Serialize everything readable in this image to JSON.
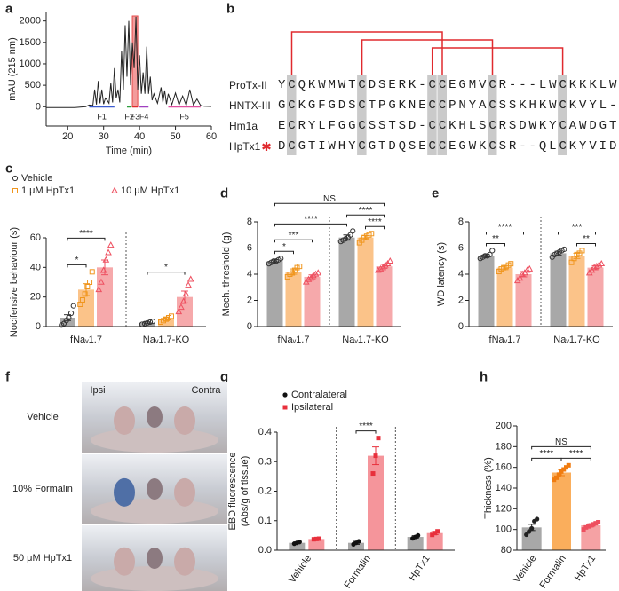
{
  "chart_data": [
    {
      "type": "line",
      "panel": "a",
      "ylabel": "mAU (215 nm)",
      "xlabel": "Time (min)",
      "color": "#222222",
      "xlim": [
        14,
        60
      ],
      "xticks": [
        20,
        30,
        40,
        50,
        60
      ],
      "ylim": [
        -450,
        2200
      ],
      "yticks": [
        0,
        500,
        1000,
        1500,
        2000
      ],
      "x": [
        14,
        22,
        25,
        26,
        27,
        27.5,
        28,
        28.5,
        29,
        29.5,
        30,
        30.5,
        31,
        31.5,
        32,
        32.5,
        33,
        33.5,
        34,
        34.5,
        35,
        35.5,
        36,
        36.5,
        37,
        37.5,
        38,
        38.5,
        39,
        39.5,
        40,
        40.5,
        41,
        41.5,
        42,
        42.5,
        43,
        43.5,
        44,
        45,
        46,
        46.5,
        47,
        47.5,
        48,
        49,
        50,
        51,
        52,
        53,
        54,
        55,
        56,
        57,
        58,
        60
      ],
      "values": [
        -20,
        -20,
        0,
        40,
        30,
        400,
        50,
        600,
        80,
        400,
        60,
        200,
        150,
        80,
        550,
        100,
        900,
        200,
        400,
        100,
        1300,
        400,
        1900,
        700,
        2000,
        500,
        1500,
        900,
        2100,
        400,
        1200,
        300,
        800,
        300,
        1400,
        300,
        700,
        150,
        300,
        80,
        450,
        100,
        380,
        60,
        300,
        50,
        320,
        40,
        250,
        30,
        400,
        40,
        180,
        30,
        10,
        5
      ],
      "fractions": [
        {
          "name": "F1",
          "color": "#3b5bd0",
          "range": [
            26,
            33
          ]
        },
        {
          "name": "F2",
          "color": "#2e9e3e",
          "range": [
            36.5,
            37.8
          ]
        },
        {
          "name": "F3",
          "color": "#e02c2c",
          "range": [
            38,
            39.5
          ],
          "highlight": true
        },
        {
          "name": "F4",
          "color": "#a040c0",
          "range": [
            40,
            42.5
          ]
        },
        {
          "name": "F5",
          "color": "#e04fa0",
          "range": [
            48,
            57
          ]
        }
      ]
    },
    {
      "type": "bar",
      "panel": "c",
      "ylabel": "Nocifensive behaviour (s)",
      "categories": [
        "fNaᵥ1.7",
        "Naᵥ1.7-KO"
      ],
      "ylim": [
        0,
        60
      ],
      "yticks": [
        0,
        20,
        40,
        60
      ],
      "group_separators": true,
      "series": [
        {
          "name": "Vehicle",
          "color": "#9e9e9e",
          "marker_color": "#333333",
          "marker": "circle-open",
          "values": [
            6,
            2.5
          ],
          "errors": [
            2,
            0.5
          ],
          "points": [
            [
              1,
              2,
              4,
              6,
              9,
              14
            ],
            [
              1.5,
              2,
              2.5,
              3,
              3.5
            ]
          ]
        },
        {
          "name": "1 μM HpTx1",
          "color": "#fbbd7c",
          "marker_color": "#f0961e",
          "marker": "square-open",
          "values": [
            25,
            5
          ],
          "errors": [
            4,
            1
          ],
          "points": [
            [
              15,
              18,
              22,
              27,
              30,
              37
            ],
            [
              3,
              4,
              5,
              6,
              7
            ]
          ]
        },
        {
          "name": "10 μM HpTx1",
          "color": "#f5a0a2",
          "marker_color": "#ee5060",
          "marker": "triangle-open",
          "values": [
            40,
            20
          ],
          "errors": [
            5,
            4
          ],
          "points": [
            [
              25,
              30,
              38,
              45,
              50,
              55
            ],
            [
              10,
              13,
              17,
              22,
              28,
              32
            ]
          ]
        }
      ],
      "significance": [
        {
          "text": "*",
          "from": [
            0,
            0
          ],
          "to": [
            0,
            1
          ]
        },
        {
          "text": "****",
          "from": [
            0,
            0
          ],
          "to": [
            0,
            2
          ]
        },
        {
          "text": "*",
          "from": [
            1,
            0
          ],
          "to": [
            1,
            2
          ]
        }
      ]
    },
    {
      "type": "bar",
      "panel": "d",
      "ylabel": "Mech. threshold (g)",
      "categories": [
        "fNaᵥ1.7",
        "Naᵥ1.7-KO"
      ],
      "ylim": [
        0,
        8
      ],
      "yticks": [
        0,
        2,
        4,
        6,
        8
      ],
      "group_separators": true,
      "series": [
        {
          "color": "#9e9e9e",
          "marker_color": "#333333",
          "marker": "circle-open",
          "values": [
            5.0,
            6.8
          ],
          "errors": [
            0.1,
            0.2
          ],
          "points": [
            [
              4.8,
              4.9,
              5.0,
              5.0,
              5.1,
              5.2
            ],
            [
              6.5,
              6.6,
              6.7,
              6.8,
              7.0,
              7.3
            ]
          ]
        },
        {
          "color": "#fbbd7c",
          "marker_color": "#f0961e",
          "marker": "square-open",
          "values": [
            4.2,
            6.8
          ],
          "errors": [
            0.2,
            0.15
          ],
          "points": [
            [
              3.8,
              4.0,
              4.1,
              4.3,
              4.5,
              4.6
            ],
            [
              6.4,
              6.6,
              6.8,
              6.9,
              7.0,
              7.1
            ]
          ]
        },
        {
          "color": "#f5a0a2",
          "marker_color": "#ee5060",
          "marker": "triangle-open",
          "values": [
            3.8,
            4.6
          ],
          "errors": [
            0.15,
            0.15
          ],
          "points": [
            [
              3.4,
              3.6,
              3.7,
              3.9,
              4.0,
              4.1
            ],
            [
              4.3,
              4.4,
              4.5,
              4.7,
              4.8,
              5.0
            ]
          ]
        }
      ],
      "significance": [
        {
          "text": "*",
          "from": [
            0,
            0
          ],
          "to": [
            0,
            1
          ]
        },
        {
          "text": "***",
          "from": [
            0,
            0
          ],
          "to": [
            0,
            2
          ]
        },
        {
          "text": "****",
          "from": [
            1,
            1
          ],
          "to": [
            1,
            2
          ]
        },
        {
          "text": "****",
          "from": [
            0,
            0
          ],
          "to": [
            1,
            0
          ]
        },
        {
          "text": "****",
          "from": [
            1,
            0
          ],
          "to": [
            1,
            2
          ]
        },
        {
          "text": "NS",
          "from": [
            0,
            0
          ],
          "to": [
            1,
            2
          ]
        }
      ]
    },
    {
      "type": "bar",
      "panel": "e",
      "ylabel": "WD latency (s)",
      "categories": [
        "fNaᵥ1.7",
        "Naᵥ1.7-KO"
      ],
      "ylim": [
        0,
        8
      ],
      "yticks": [
        0,
        2,
        4,
        6,
        8
      ],
      "group_separators": true,
      "series": [
        {
          "color": "#9e9e9e",
          "marker_color": "#333333",
          "marker": "circle-open",
          "values": [
            5.4,
            5.6
          ],
          "errors": [
            0.1,
            0.15
          ],
          "points": [
            [
              5.2,
              5.3,
              5.4,
              5.4,
              5.5,
              5.8
            ],
            [
              5.3,
              5.5,
              5.6,
              5.7,
              5.8,
              5.9
            ]
          ]
        },
        {
          "color": "#fbbd7c",
          "marker_color": "#f0961e",
          "marker": "square-open",
          "values": [
            4.5,
            5.4
          ],
          "errors": [
            0.15,
            0.2
          ],
          "points": [
            [
              4.2,
              4.4,
              4.5,
              4.6,
              4.7,
              4.8
            ],
            [
              4.9,
              5.2,
              5.5,
              5.6,
              5.8
            ]
          ]
        },
        {
          "color": "#f5a0a2",
          "marker_color": "#ee5060",
          "marker": "triangle-open",
          "values": [
            4.0,
            4.5
          ],
          "errors": [
            0.2,
            0.15
          ],
          "points": [
            [
              3.5,
              3.7,
              4.0,
              4.1,
              4.3,
              4.4
            ],
            [
              4.1,
              4.3,
              4.5,
              4.6,
              4.7,
              4.8
            ]
          ]
        }
      ],
      "significance": [
        {
          "text": "**",
          "from": [
            0,
            0
          ],
          "to": [
            0,
            1
          ]
        },
        {
          "text": "****",
          "from": [
            0,
            0
          ],
          "to": [
            0,
            2
          ]
        },
        {
          "text": "**",
          "from": [
            1,
            1
          ],
          "to": [
            1,
            2
          ]
        },
        {
          "text": "***",
          "from": [
            1,
            0
          ],
          "to": [
            1,
            2
          ]
        }
      ]
    },
    {
      "type": "bar",
      "panel": "g",
      "ylabel": [
        "EBD fluorescence",
        "(Abs/g of tissue)"
      ],
      "categories": [
        "Vehicle",
        "Formalin",
        "HpTx1"
      ],
      "ylim": [
        0,
        0.4
      ],
      "yticks": [
        {
          "value": 0,
          "label": "0.0"
        },
        0.1,
        0.2,
        0.3,
        0.4
      ],
      "group_separators": true,
      "series": [
        {
          "name": "Contralateral",
          "color": "#a0a0a0",
          "marker_color": "#111111",
          "marker": "circle",
          "values": [
            0.025,
            0.025,
            0.045
          ],
          "errors": [
            0.003,
            0.005,
            0.004
          ],
          "points": [
            [
              0.022,
              0.025,
              0.028
            ],
            [
              0.02,
              0.025,
              0.03
            ],
            [
              0.04,
              0.045,
              0.05
            ]
          ]
        },
        {
          "name": "Ipsilateral",
          "color": "#f48a90",
          "marker_color": "#e8303c",
          "marker": "square",
          "values": [
            0.038,
            0.32,
            0.058
          ],
          "errors": [
            0.001,
            0.03,
            0.005
          ],
          "points": [
            [
              0.037,
              0.038,
              0.039
            ],
            [
              0.26,
              0.32,
              0.38
            ],
            [
              0.052,
              0.058,
              0.064
            ]
          ]
        }
      ],
      "significance": [
        {
          "text": "****",
          "from": [
            1,
            0
          ],
          "to": [
            1,
            1
          ]
        }
      ]
    },
    {
      "type": "bar",
      "panel": "h",
      "ylabel": "Thickness (%)",
      "categories": [
        "Vehicle",
        "Formalin",
        "HpTx1"
      ],
      "ylim": [
        80,
        200
      ],
      "yticks": [
        80,
        100,
        120,
        140,
        160,
        180,
        200
      ],
      "values": [
        102,
        155,
        104
      ],
      "errors": [
        3,
        3,
        1.5
      ],
      "colors": [
        "#9e9e9e",
        "#f9a54a",
        "#f4989a"
      ],
      "marker_colors": [
        "#222222",
        "#f07c10",
        "#ee4f5f"
      ],
      "markers": [
        "circle",
        "square",
        "square"
      ],
      "points": [
        [
          95,
          98,
          101,
          108,
          110
        ],
        [
          148,
          150,
          153,
          156,
          158,
          160,
          162
        ],
        [
          100,
          102,
          103,
          104,
          105,
          106,
          107
        ]
      ],
      "significance": [
        {
          "text": "****",
          "from": 0,
          "to": 1
        },
        {
          "text": "****",
          "from": 1,
          "to": 2
        },
        {
          "text": "NS",
          "from": 0,
          "to": 2
        }
      ]
    }
  ],
  "alignment": {
    "panel": "b",
    "rows": [
      {
        "name": "ProTx-II",
        "sequence": "YCQKWMWTCDSERK-CCEGMVCR---LWCKKKLW-"
      },
      {
        "name": "HNTX-III",
        "sequence": "GCKGFGDSCTPGKNECCPNYACSSKHKWCKVYL--"
      },
      {
        "name": "Hm1a",
        "sequence": "ECRYLFGGCSSTSD-CCKHLSCRSDWKYCAWDGTFS"
      },
      {
        "name": "HpTx1",
        "sequence": "DCGTIWHYCGTDQSECCEGWKCSR--QLCKYVIDW-",
        "star": true
      }
    ]
  },
  "photo_panel": {
    "panel": "f",
    "columns": [
      "Ipsi",
      "Contra"
    ],
    "rows": [
      "Vehicle",
      "10% Formalin",
      "50 μM HpTx1"
    ]
  }
}
